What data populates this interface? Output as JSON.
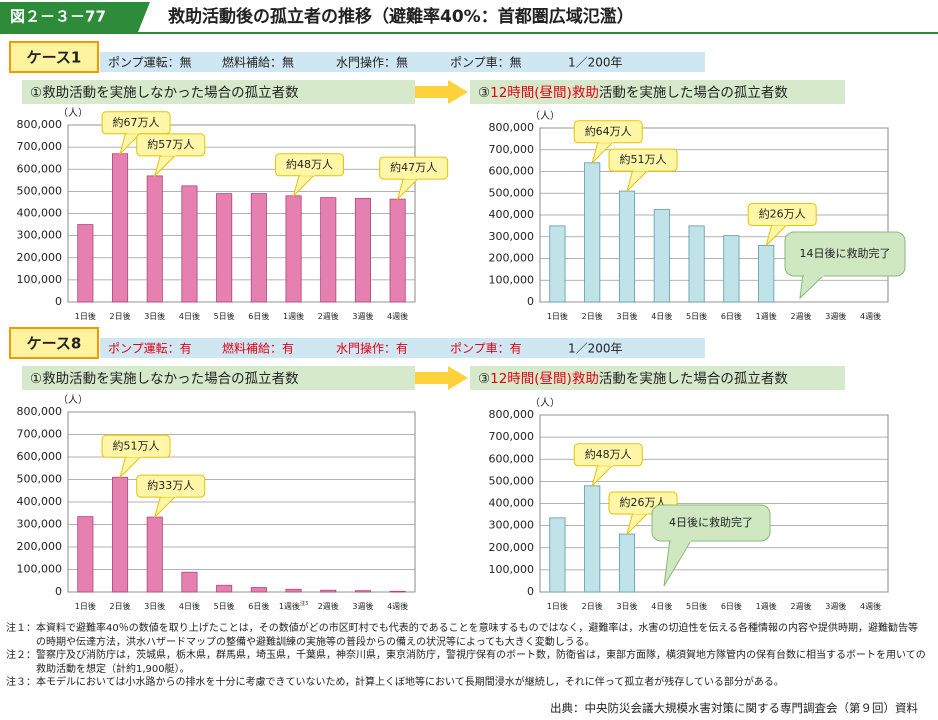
{
  "header": {
    "figure_number": "図２－３－77",
    "title": "救助活動後の孤立者の推移（避難率40%：首都圏広域氾濫）"
  },
  "cases": [
    {
      "label": "ケース1",
      "conditions": [
        {
          "text": "ポンプ運転：無",
          "color": "#222"
        },
        {
          "text": "燃料補給：無",
          "color": "#222"
        },
        {
          "text": "水門操作：無",
          "color": "#222"
        },
        {
          "text": "ポンプ車：無",
          "color": "#222"
        },
        {
          "text": "1／200年",
          "color": "#222"
        }
      ]
    },
    {
      "label": "ケース8",
      "conditions": [
        {
          "text": "ポンプ運転：有",
          "color": "#e60012"
        },
        {
          "text": "燃料補給：有",
          "color": "#e60012"
        },
        {
          "text": "水門操作：有",
          "color": "#e60012"
        },
        {
          "text": "ポンプ車：有",
          "color": "#e60012"
        },
        {
          "text": "1／200年",
          "color": "#222"
        }
      ]
    }
  ],
  "chart_data": [
    {
      "type": "bar",
      "title_parts": [
        {
          "text": "①救助活動を実施しなかった場合の孤立者数",
          "color": "#222"
        }
      ],
      "y_unit": "（人）",
      "color": "#e680b0",
      "stroke": "#b0457a",
      "categories": [
        "1日後",
        "2日後",
        "3日後",
        "4日後",
        "5日後",
        "6日後",
        "1週後",
        "2週後",
        "3週後",
        "4週後"
      ],
      "values": [
        350000,
        670000,
        570000,
        525000,
        490000,
        490000,
        480000,
        472000,
        468000,
        465000
      ],
      "value_labels": [
        null,
        "約67万人",
        "約57万人",
        null,
        null,
        null,
        "約48万人",
        null,
        null,
        "約47万人"
      ],
      "ylim": [
        0,
        800000
      ],
      "yticks": [
        0,
        {
          "value": 100000,
          "label": "100,000"
        },
        {
          "value": 200000,
          "label": "200,000"
        },
        {
          "value": 300000,
          "label": "300,000"
        },
        {
          "value": 400000,
          "label": "400,000"
        },
        {
          "value": 500000,
          "label": "500,000"
        },
        {
          "value": 600000,
          "label": "600,000"
        },
        {
          "value": 700000,
          "label": "700,000"
        },
        {
          "value": 800000,
          "label": "800,000"
        }
      ],
      "grid": true
    },
    {
      "type": "bar",
      "title_parts": [
        {
          "text": "③",
          "color": "#222"
        },
        {
          "text": "12時間(昼間)救助",
          "color": "#e60012"
        },
        {
          "text": "活動を実施した場合の孤立者数",
          "color": "#222"
        }
      ],
      "y_unit": "（人）",
      "color": "#bfe3e8",
      "stroke": "#5a9aa6",
      "categories": [
        "1日後",
        "2日後",
        "3日後",
        "4日後",
        "5日後",
        "6日後",
        "1週後",
        "2週後",
        "3週後",
        "4週後"
      ],
      "values": [
        350000,
        640000,
        510000,
        425000,
        350000,
        305000,
        260000,
        0,
        0,
        0
      ],
      "value_labels": [
        null,
        "約64万人",
        "約51万人",
        null,
        null,
        null,
        "約26万人",
        null,
        null,
        null
      ],
      "annotation": "14日後に救助完了",
      "ylim": [
        0,
        800000
      ],
      "yticks": [
        0,
        {
          "value": 100000,
          "label": "100,000"
        },
        {
          "value": 200000,
          "label": "200,000"
        },
        {
          "value": 300000,
          "label": "300,000"
        },
        {
          "value": 400000,
          "label": "400,000"
        },
        {
          "value": 500000,
          "label": "500,000"
        },
        {
          "value": 600000,
          "label": "600,000"
        },
        {
          "value": 700000,
          "label": "700,000"
        },
        {
          "value": 800000,
          "label": "800,000"
        }
      ],
      "grid": true
    },
    {
      "type": "bar",
      "title_parts": [
        {
          "text": "①救助活動を実施しなかった場合の孤立者数",
          "color": "#222"
        }
      ],
      "y_unit": "（人）",
      "color": "#e680b0",
      "stroke": "#b0457a",
      "categories": [
        "1日後",
        "2日後",
        "3日後",
        "4日後",
        "5日後",
        "6日後",
        "1週後",
        "2週後",
        "3週後",
        "4週後"
      ],
      "category_notes": [
        null,
        null,
        null,
        null,
        null,
        null,
        "注3",
        null,
        null,
        null
      ],
      "values": [
        335000,
        510000,
        333000,
        88000,
        30000,
        20000,
        12000,
        8000,
        6000,
        3000
      ],
      "value_labels": [
        null,
        "約51万人",
        "約33万人",
        null,
        null,
        null,
        null,
        null,
        null,
        null
      ],
      "ylim": [
        0,
        800000
      ],
      "yticks": [
        0,
        {
          "value": 100000,
          "label": "100,000"
        },
        {
          "value": 200000,
          "label": "200,000"
        },
        {
          "value": 300000,
          "label": "300,000"
        },
        {
          "value": 400000,
          "label": "400,000"
        },
        {
          "value": 500000,
          "label": "500,000"
        },
        {
          "value": 600000,
          "label": "600,000"
        },
        {
          "value": 700000,
          "label": "700,000"
        },
        {
          "value": 800000,
          "label": "800,000"
        }
      ],
      "grid": true
    },
    {
      "type": "bar",
      "title_parts": [
        {
          "text": "③",
          "color": "#222"
        },
        {
          "text": "12時間(昼間)救助",
          "color": "#e60012"
        },
        {
          "text": "活動を実施した場合の孤立者数",
          "color": "#222"
        }
      ],
      "y_unit": "（人）",
      "color": "#bfe3e8",
      "stroke": "#5a9aa6",
      "categories": [
        "1日後",
        "2日後",
        "3日後",
        "4日後",
        "5日後",
        "6日後",
        "1週後",
        "2週後",
        "3週後",
        "4週後"
      ],
      "values": [
        335000,
        480000,
        262000,
        0,
        0,
        0,
        0,
        0,
        0,
        0
      ],
      "value_labels": [
        null,
        "約48万人",
        "約26万人",
        null,
        null,
        null,
        null,
        null,
        null,
        null
      ],
      "annotation": "4日後に救助完了",
      "ylim": [
        0,
        800000
      ],
      "yticks": [
        0,
        {
          "value": 100000,
          "label": "100,000"
        },
        {
          "value": 200000,
          "label": "200,000"
        },
        {
          "value": 300000,
          "label": "300,000"
        },
        {
          "value": 400000,
          "label": "400,000"
        },
        {
          "value": 500000,
          "label": "500,000"
        },
        {
          "value": 600000,
          "label": "600,000"
        },
        {
          "value": 700000,
          "label": "700,000"
        },
        {
          "value": 800000,
          "label": "800,000"
        }
      ],
      "grid": true
    }
  ],
  "notes": [
    "注１：本資料で避難率40％の数値を取り上げたことは，その数値がどの市区町村でも代表的であることを意味するものではなく，避難率は，水害の切迫性を伝える各種情報の内容や提供時期，避難勧告等の時期や伝達方法，洪水ハザードマップの整備や避難訓練の実施等の普段からの備えの状況等によっても大きく変動しうる。",
    "注２：警察庁及び消防庁は，茨城県，栃木県，群馬県，埼玉県，千葉県，神奈川県，東京消防庁，警視庁保有のボート数，防衛省は，東部方面隊，横須賀地方隊管内の保有台数に相当するボートを用いての救助活動を想定（計約1,900艇）。",
    "注３：本モデルにおいては小水路からの排水を十分に考慮できていないため，計算上くぼ地等において長期間浸水が継続し，それに伴って孤立者が残存している部分がある。"
  ],
  "source": "出典：中央防災会議大規模水害対策に関する専門調査会（第９回）資料"
}
